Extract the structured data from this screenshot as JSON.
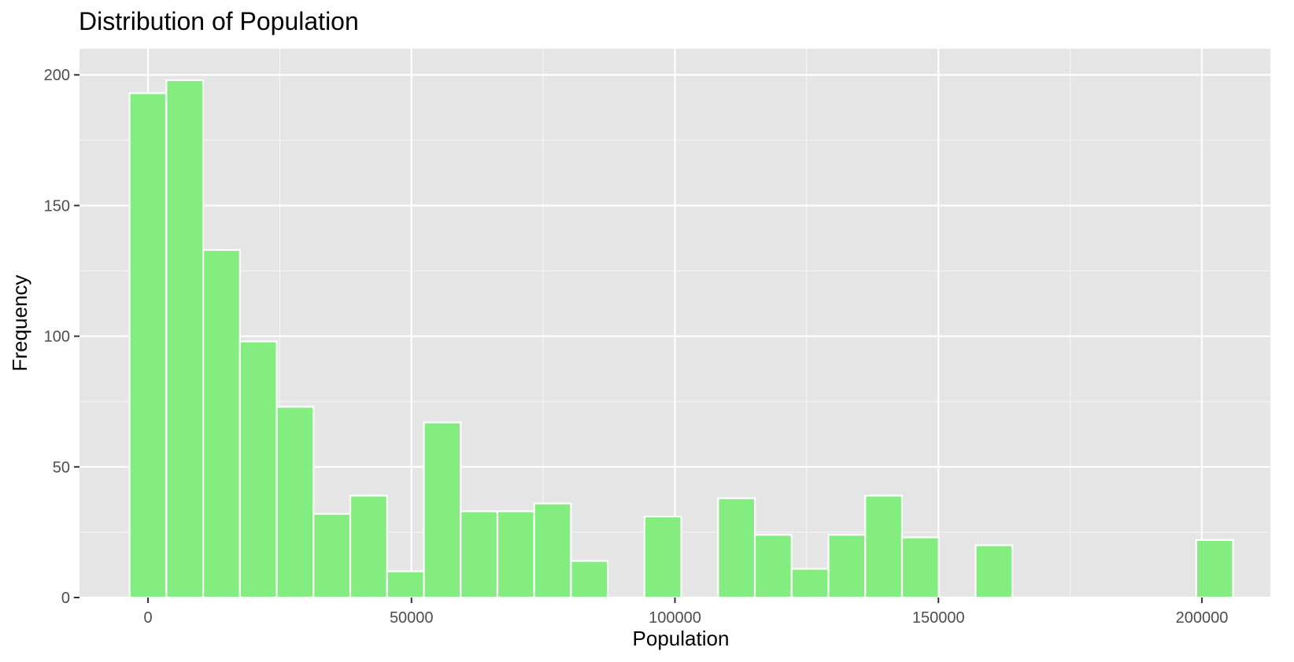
{
  "chart_data": {
    "type": "bar",
    "title": "Distribution of Population",
    "xlabel": "Population",
    "ylabel": "Frequency",
    "xlim": [
      -13000,
      213000
    ],
    "ylim": [
      0,
      210
    ],
    "x_ticks": [
      0,
      50000,
      100000,
      150000,
      200000
    ],
    "x_tick_labels": [
      "0",
      "50000",
      "100000",
      "150000",
      "200000"
    ],
    "y_ticks": [
      0,
      50,
      100,
      150,
      200
    ],
    "y_tick_labels": [
      "0",
      "50",
      "100",
      "150",
      "200"
    ],
    "bin_width": 6980,
    "bin_start": -3490,
    "counts": [
      193,
      198,
      133,
      98,
      73,
      32,
      39,
      10,
      67,
      33,
      33,
      36,
      14,
      0,
      31,
      0,
      38,
      24,
      11,
      24,
      39,
      23,
      0,
      20,
      0,
      0,
      0,
      0,
      0,
      22
    ],
    "bar_color": "#83ED7F",
    "bar_outline": "#FFFFFF",
    "panel_background": "#E5E5E5",
    "grid": true
  }
}
